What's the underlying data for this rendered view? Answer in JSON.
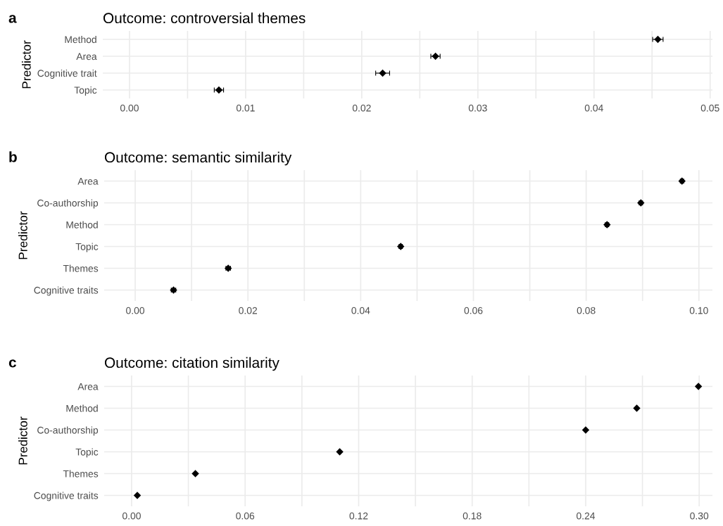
{
  "chart_data": [
    {
      "type": "scatter",
      "title": "Outcome: controversial themes",
      "ylabel": "Predictor",
      "annotations": [
        "a"
      ],
      "categories": [
        "Method",
        "Area",
        "Cognitive trait",
        "Topic"
      ],
      "orientation": "horizontal",
      "values": [
        0.0455,
        0.02635,
        0.0218,
        0.0077
      ],
      "errors": [
        0.00045,
        0.0004,
        0.0006,
        0.0004
      ],
      "color": "#000000",
      "marker": "diamond",
      "xlim": [
        -0.0023,
        0.0502
      ],
      "xticks": [
        {
          "value": 0,
          "label": "0.00"
        },
        {
          "value": 0.005,
          "label": null
        },
        {
          "value": 0.01,
          "label": "0.01"
        },
        {
          "value": 0.015,
          "label": null
        },
        {
          "value": 0.02,
          "label": "0.02"
        },
        {
          "value": 0.025,
          "label": null
        },
        {
          "value": 0.03,
          "label": "0.03"
        },
        {
          "value": 0.035,
          "label": null
        },
        {
          "value": 0.04,
          "label": "0.04"
        },
        {
          "value": 0.045,
          "label": null
        },
        {
          "value": 0.05,
          "label": "0.05"
        }
      ],
      "grid": true
    },
    {
      "type": "scatter",
      "title": "Outcome: semantic similarity",
      "ylabel": "Predictor",
      "annotations": [
        "b"
      ],
      "categories": [
        "Area",
        "Co-authorship",
        "Method",
        "Topic",
        "Themes",
        "Cognitive traits"
      ],
      "orientation": "horizontal",
      "values": [
        0.097,
        0.0897,
        0.0837,
        0.0471,
        0.0165,
        0.0068
      ],
      "errors": [
        0.0003,
        0.0003,
        0.0003,
        0.0003,
        0.0004,
        0.0004
      ],
      "color": "#000000",
      "marker": "diamond",
      "xlim": [
        -0.0055,
        0.1024
      ],
      "xticks": [
        {
          "value": 0,
          "label": "0.00"
        },
        {
          "value": 0.01,
          "label": null
        },
        {
          "value": 0.02,
          "label": "0.02"
        },
        {
          "value": 0.03,
          "label": null
        },
        {
          "value": 0.04,
          "label": "0.04"
        },
        {
          "value": 0.05,
          "label": null
        },
        {
          "value": 0.06,
          "label": "0.06"
        },
        {
          "value": 0.07,
          "label": null
        },
        {
          "value": 0.08,
          "label": "0.08"
        },
        {
          "value": 0.09,
          "label": null
        },
        {
          "value": 0.1,
          "label": "0.10"
        }
      ],
      "grid": true
    },
    {
      "type": "scatter",
      "title": "Outcome: citation similarity",
      "ylabel": "Predictor",
      "annotations": [
        "c"
      ],
      "categories": [
        "Area",
        "Method",
        "Co-authorship",
        "Topic",
        "Themes",
        "Cognitive traits"
      ],
      "orientation": "horizontal",
      "values": [
        0.2996,
        0.267,
        0.24,
        0.11,
        0.0337,
        0.003
      ],
      "color": "#000000",
      "marker": "diamond",
      "xlim": [
        -0.0145,
        0.307
      ],
      "xticks": [
        {
          "value": 0,
          "label": "0.00"
        },
        {
          "value": 0.03,
          "label": null
        },
        {
          "value": 0.06,
          "label": "0.06"
        },
        {
          "value": 0.09,
          "label": null
        },
        {
          "value": 0.12,
          "label": "0.12"
        },
        {
          "value": 0.15,
          "label": null
        },
        {
          "value": 0.18,
          "label": "0.18"
        },
        {
          "value": 0.21,
          "label": null
        },
        {
          "value": 0.24,
          "label": "0.24"
        },
        {
          "value": 0.27,
          "label": null
        },
        {
          "value": 0.3,
          "label": "0.30"
        }
      ],
      "grid": true
    }
  ]
}
